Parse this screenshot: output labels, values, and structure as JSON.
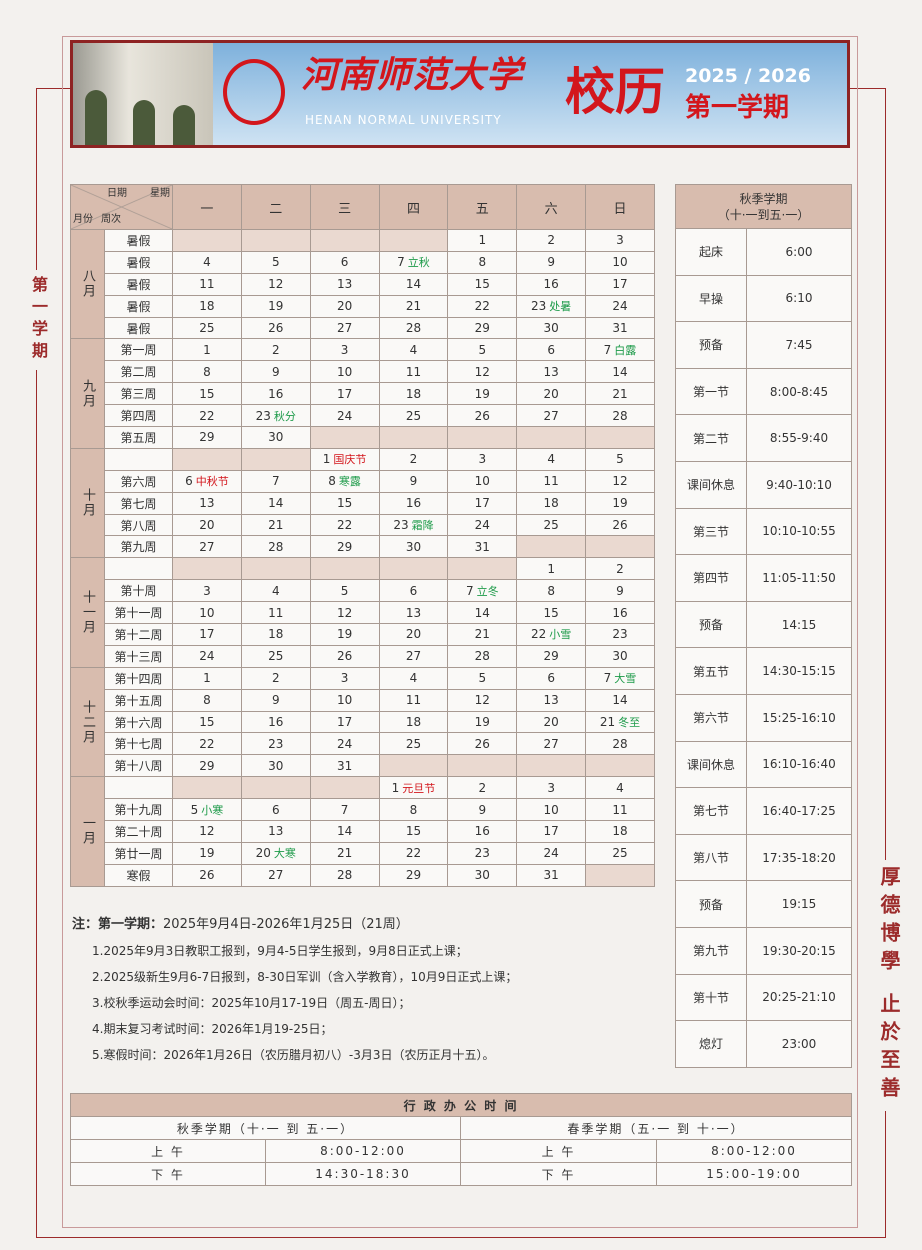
{
  "header": {
    "university_cn": "河南师范大学",
    "university_en": "HENAN NORMAL UNIVERSITY",
    "seal_text": "河南师范大学",
    "title": "校历",
    "years": "2025 / 2026",
    "term": "第一学期"
  },
  "side_label": "第一学期",
  "motto": "厚德博學 止於至善",
  "calendar": {
    "corner": {
      "date": "日期",
      "weekday": "星期",
      "month": "月份",
      "week": "周次"
    },
    "weekdays": [
      "一",
      "二",
      "三",
      "四",
      "五",
      "六",
      "日"
    ],
    "months": [
      {
        "name": "八月",
        "rows": [
          {
            "week": "暑假",
            "days": [
              "",
              "",
              "",
              "",
              "1",
              "2",
              "3"
            ]
          },
          {
            "week": "暑假",
            "days": [
              "4",
              "5",
              "6",
              {
                "d": "7",
                "t": "立秋",
                "c": "g"
              },
              "8",
              "9",
              "10"
            ]
          },
          {
            "week": "暑假",
            "days": [
              "11",
              "12",
              "13",
              "14",
              "15",
              "16",
              "17"
            ]
          },
          {
            "week": "暑假",
            "days": [
              "18",
              "19",
              "20",
              "21",
              "22",
              {
                "d": "23",
                "t": "处暑",
                "c": "g"
              },
              "24"
            ]
          },
          {
            "week": "暑假",
            "days": [
              "25",
              "26",
              "27",
              "28",
              "29",
              "30",
              "31"
            ]
          }
        ]
      },
      {
        "name": "九月",
        "rows": [
          {
            "week": "第一周",
            "days": [
              "1",
              "2",
              "3",
              "4",
              "5",
              "6",
              {
                "d": "7",
                "t": "白露",
                "c": "g"
              }
            ]
          },
          {
            "week": "第二周",
            "days": [
              "8",
              "9",
              "10",
              "11",
              "12",
              "13",
              "14"
            ]
          },
          {
            "week": "第三周",
            "days": [
              "15",
              "16",
              "17",
              "18",
              "19",
              "20",
              "21"
            ]
          },
          {
            "week": "第四周",
            "days": [
              "22",
              {
                "d": "23",
                "t": "秋分",
                "c": "g"
              },
              "24",
              "25",
              "26",
              "27",
              "28"
            ]
          },
          {
            "week": "第五周",
            "days": [
              "29",
              "30",
              "",
              "",
              "",
              "",
              ""
            ]
          }
        ]
      },
      {
        "name": "十月",
        "rows": [
          {
            "week": "",
            "days": [
              "",
              "",
              {
                "d": "1",
                "t": "国庆节",
                "c": "r"
              },
              "2",
              "3",
              "4",
              "5"
            ]
          },
          {
            "week": "第六周",
            "days": [
              {
                "d": "6",
                "t": "中秋节",
                "c": "r"
              },
              "7",
              {
                "d": "8",
                "t": "寒露",
                "c": "g"
              },
              "9",
              "10",
              "11",
              "12"
            ]
          },
          {
            "week": "第七周",
            "days": [
              "13",
              "14",
              "15",
              "16",
              "17",
              "18",
              "19"
            ]
          },
          {
            "week": "第八周",
            "days": [
              "20",
              "21",
              "22",
              {
                "d": "23",
                "t": "霜降",
                "c": "g"
              },
              "24",
              "25",
              "26"
            ]
          },
          {
            "week": "第九周",
            "days": [
              "27",
              "28",
              "29",
              "30",
              "31",
              "",
              ""
            ]
          }
        ]
      },
      {
        "name": "十一月",
        "rows": [
          {
            "week": "",
            "days": [
              "",
              "",
              "",
              "",
              "",
              "1",
              "2"
            ]
          },
          {
            "week": "第十周",
            "days": [
              "3",
              "4",
              "5",
              "6",
              {
                "d": "7",
                "t": "立冬",
                "c": "g"
              },
              "8",
              "9"
            ]
          },
          {
            "week": "第十一周",
            "days": [
              "10",
              "11",
              "12",
              "13",
              "14",
              "15",
              "16"
            ]
          },
          {
            "week": "第十二周",
            "days": [
              "17",
              "18",
              "19",
              "20",
              "21",
              {
                "d": "22",
                "t": "小雪",
                "c": "g"
              },
              "23"
            ]
          },
          {
            "week": "第十三周",
            "days": [
              "24",
              "25",
              "26",
              "27",
              "28",
              "29",
              "30"
            ]
          }
        ]
      },
      {
        "name": "十二月",
        "rows": [
          {
            "week": "第十四周",
            "days": [
              "1",
              "2",
              "3",
              "4",
              "5",
              "6",
              {
                "d": "7",
                "t": "大雪",
                "c": "g"
              }
            ]
          },
          {
            "week": "第十五周",
            "days": [
              "8",
              "9",
              "10",
              "11",
              "12",
              "13",
              "14"
            ]
          },
          {
            "week": "第十六周",
            "days": [
              "15",
              "16",
              "17",
              "18",
              "19",
              "20",
              {
                "d": "21",
                "t": "冬至",
                "c": "g"
              }
            ]
          },
          {
            "week": "第十七周",
            "days": [
              "22",
              "23",
              "24",
              "25",
              "26",
              "27",
              "28"
            ]
          },
          {
            "week": "第十八周",
            "days": [
              "29",
              "30",
              "31",
              "",
              "",
              "",
              ""
            ]
          }
        ]
      },
      {
        "name": "一月",
        "rows": [
          {
            "week": "",
            "days": [
              "",
              "",
              "",
              {
                "d": "1",
                "t": "元旦节",
                "c": "r"
              },
              "2",
              "3",
              "4"
            ]
          },
          {
            "week": "第十九周",
            "days": [
              {
                "d": "5",
                "t": "小寒",
                "c": "g"
              },
              "6",
              "7",
              "8",
              "9",
              "10",
              "11"
            ]
          },
          {
            "week": "第二十周",
            "days": [
              "12",
              "13",
              "14",
              "15",
              "16",
              "17",
              "18"
            ]
          },
          {
            "week": "第廿一周",
            "days": [
              "19",
              {
                "d": "20",
                "t": "大寒",
                "c": "g"
              },
              "21",
              "22",
              "23",
              "24",
              "25"
            ]
          },
          {
            "week": "寒假",
            "days": [
              "26",
              "27",
              "28",
              "29",
              "30",
              "31",
              ""
            ]
          }
        ]
      }
    ]
  },
  "schedule": {
    "title": "秋季学期",
    "subtitle": "（十·一到五·一）",
    "rows": [
      [
        "起床",
        "6:00"
      ],
      [
        "早操",
        "6:10"
      ],
      [
        "预备",
        "7:45"
      ],
      [
        "第一节",
        "8:00-8:45"
      ],
      [
        "第二节",
        "8:55-9:40"
      ],
      [
        "课间休息",
        "9:40-10:10"
      ],
      [
        "第三节",
        "10:10-10:55"
      ],
      [
        "第四节",
        "11:05-11:50"
      ],
      [
        "预备",
        "14:15"
      ],
      [
        "第五节",
        "14:30-15:15"
      ],
      [
        "第六节",
        "15:25-16:10"
      ],
      [
        "课间休息",
        "16:10-16:40"
      ],
      [
        "第七节",
        "16:40-17:25"
      ],
      [
        "第八节",
        "17:35-18:20"
      ],
      [
        "预备",
        "19:15"
      ],
      [
        "第九节",
        "19:30-20:15"
      ],
      [
        "第十节",
        "20:25-21:10"
      ],
      [
        "熄灯",
        "23:00"
      ]
    ]
  },
  "notes": {
    "label": "注：",
    "term_label": "第一学期：",
    "term_range": "2025年9月4日-2026年1月25日（21周）",
    "items": [
      "1.2025年9月3日教职工报到，9月4-5日学生报到，9月8日正式上课；",
      "2.2025级新生9月6-7日报到，8-30日军训（含入学教育），10月9日正式上课；",
      "3.校秋季运动会时间：2025年10月17-19日（周五-周日）；",
      "4.期末复习考试时间：2026年1月19-25日；",
      "5.寒假时间：2026年1月26日（农历腊月初八）-3月3日（农历正月十五）。"
    ]
  },
  "office": {
    "title": "行 政 办 公 时 间",
    "autumn": "秋季学期（十·一 到 五·一）",
    "spring": "春季学期（五·一 到 十·一）",
    "rows": [
      {
        "label": "上 午",
        "autumn": "8:00-12:00",
        "spring": "8:00-12:00"
      },
      {
        "label": "下 午",
        "autumn": "14:30-18:30",
        "spring": "15:00-19:00"
      }
    ]
  },
  "colors": {
    "accent": "#d3161c",
    "frame": "#9c2b2b",
    "header_fill": "#d8bcae",
    "solar_term": "#1e9b4a"
  }
}
